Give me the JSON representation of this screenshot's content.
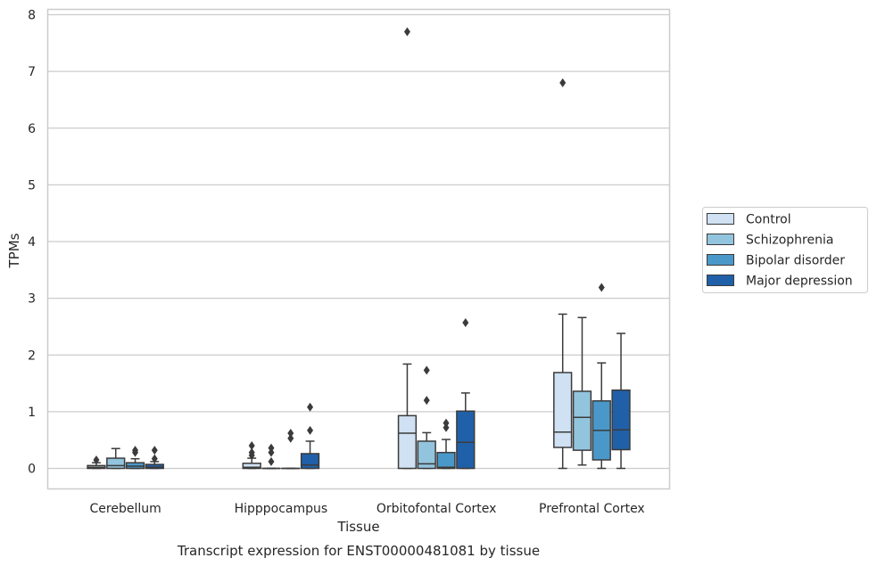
{
  "chart_data": {
    "type": "box",
    "title": "",
    "caption": "Transcript expression for ENST00000481081 by tissue",
    "xlabel": "Tissue",
    "ylabel": "TPMs",
    "ylim": [
      -0.37,
      8.08
    ],
    "yticks": [
      0,
      1,
      2,
      3,
      4,
      5,
      6,
      7,
      8
    ],
    "grid": "horizontal",
    "legend_position": "right",
    "categories": [
      "Cerebellum",
      "Hipppocampus",
      "Orbitofontal Cortex",
      "Prefrontal Cortex"
    ],
    "series": [
      {
        "name": "Control",
        "color": "#cfe1f2",
        "boxes": [
          {
            "category": "Cerebellum",
            "whislo": 0.0,
            "q1": 0.0,
            "med": 0.02,
            "q3": 0.05,
            "whishi": 0.1,
            "fliers": [
              0.15
            ]
          },
          {
            "category": "Hipppocampus",
            "whislo": 0.0,
            "q1": 0.0,
            "med": 0.02,
            "q3": 0.09,
            "whishi": 0.18,
            "fliers": [
              0.23,
              0.28,
              0.4
            ]
          },
          {
            "category": "Orbitofontal Cortex",
            "whislo": 0.0,
            "q1": 0.0,
            "med": 0.62,
            "q3": 0.93,
            "whishi": 1.84,
            "fliers": [
              7.7
            ]
          },
          {
            "category": "Prefrontal Cortex",
            "whislo": 0.0,
            "q1": 0.37,
            "med": 0.64,
            "q3": 1.69,
            "whishi": 2.72,
            "fliers": [
              6.8
            ]
          }
        ]
      },
      {
        "name": "Schizophrenia",
        "color": "#93c4de",
        "boxes": [
          {
            "category": "Cerebellum",
            "whislo": 0.0,
            "q1": 0.0,
            "med": 0.05,
            "q3": 0.18,
            "whishi": 0.35,
            "fliers": []
          },
          {
            "category": "Hipppocampus",
            "whislo": 0.0,
            "q1": 0.0,
            "med": 0.0,
            "q3": 0.0,
            "whishi": 0.0,
            "fliers": [
              0.12,
              0.28,
              0.36
            ]
          },
          {
            "category": "Orbitofontal Cortex",
            "whislo": 0.0,
            "q1": 0.0,
            "med": 0.08,
            "q3": 0.48,
            "whishi": 0.63,
            "fliers": [
              1.2,
              1.73
            ]
          },
          {
            "category": "Prefrontal Cortex",
            "whislo": 0.06,
            "q1": 0.32,
            "med": 0.9,
            "q3": 1.36,
            "whishi": 2.66,
            "fliers": []
          }
        ]
      },
      {
        "name": "Bipolar disorder",
        "color": "#4a98c9",
        "boxes": [
          {
            "category": "Cerebellum",
            "whislo": 0.0,
            "q1": 0.0,
            "med": 0.04,
            "q3": 0.1,
            "whishi": 0.17,
            "fliers": [
              0.28,
              0.32
            ]
          },
          {
            "category": "Hipppocampus",
            "whislo": 0.0,
            "q1": 0.0,
            "med": 0.0,
            "q3": 0.0,
            "whishi": 0.0,
            "fliers": [
              0.53,
              0.62
            ]
          },
          {
            "category": "Orbitofontal Cortex",
            "whislo": 0.0,
            "q1": 0.0,
            "med": 0.02,
            "q3": 0.28,
            "whishi": 0.51,
            "fliers": [
              0.72,
              0.8
            ]
          },
          {
            "category": "Prefrontal Cortex",
            "whislo": 0.0,
            "q1": 0.15,
            "med": 0.67,
            "q3": 1.19,
            "whishi": 1.86,
            "fliers": [
              3.19
            ]
          }
        ]
      },
      {
        "name": "Major depression",
        "color": "#2060a8",
        "boxes": [
          {
            "category": "Cerebellum",
            "whislo": 0.0,
            "q1": 0.0,
            "med": 0.02,
            "q3": 0.07,
            "whishi": 0.12,
            "fliers": [
              0.17,
              0.32
            ]
          },
          {
            "category": "Hipppocampus",
            "whislo": 0.0,
            "q1": 0.0,
            "med": 0.06,
            "q3": 0.26,
            "whishi": 0.48,
            "fliers": [
              0.67,
              1.08
            ]
          },
          {
            "category": "Orbitofontal Cortex",
            "whislo": 0.0,
            "q1": 0.0,
            "med": 0.46,
            "q3": 1.01,
            "whishi": 1.33,
            "fliers": [
              2.57
            ]
          },
          {
            "category": "Prefrontal Cortex",
            "whislo": 0.0,
            "q1": 0.33,
            "med": 0.68,
            "q3": 1.38,
            "whishi": 2.38,
            "fliers": []
          }
        ]
      }
    ]
  },
  "colors": {
    "grid": "#cccccc",
    "frame": "#cccccc",
    "box_edge": "#3b3b3b",
    "text": "#262626"
  }
}
